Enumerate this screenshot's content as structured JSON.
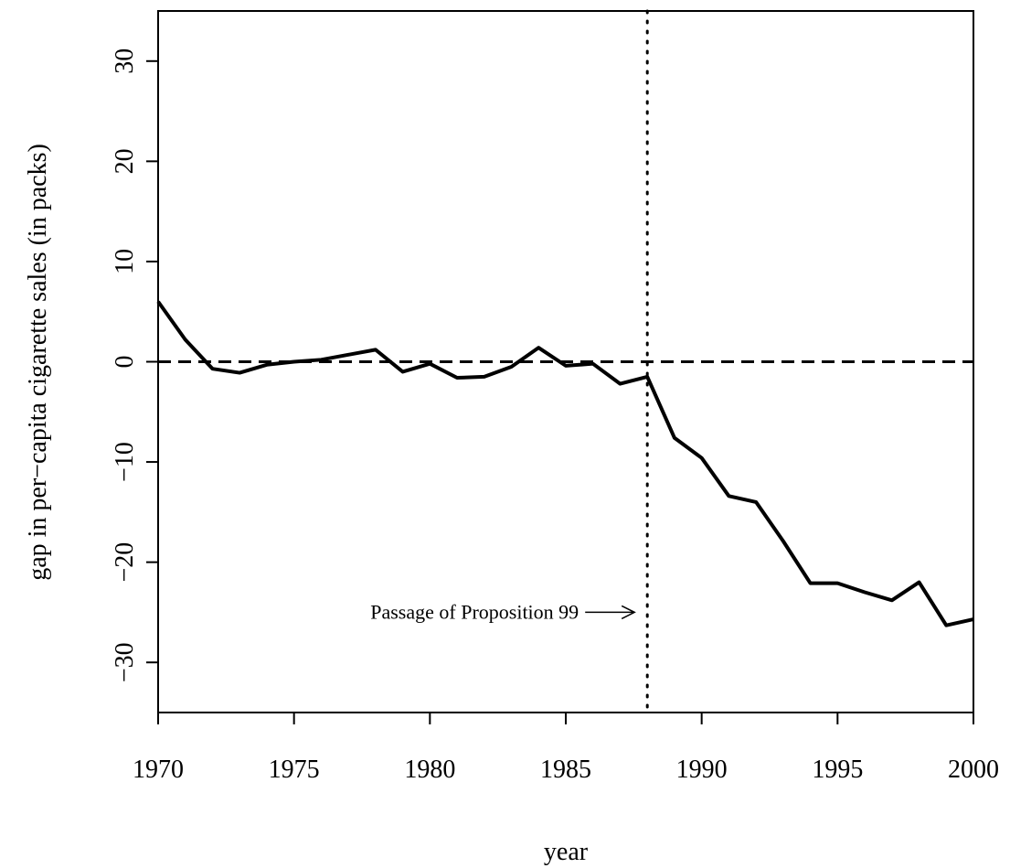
{
  "chart_data": {
    "type": "line",
    "x": [
      1970,
      1971,
      1972,
      1973,
      1974,
      1975,
      1976,
      1977,
      1978,
      1979,
      1980,
      1981,
      1982,
      1983,
      1984,
      1985,
      1986,
      1987,
      1988,
      1989,
      1990,
      1991,
      1992,
      1993,
      1994,
      1995,
      1996,
      1997,
      1998,
      1999,
      2000
    ],
    "series": [
      {
        "color": "#000000",
        "values": [
          6.0,
          2.2,
          -0.7,
          -1.1,
          -0.3,
          0.0,
          0.2,
          0.7,
          1.2,
          -1.0,
          -0.2,
          -1.6,
          -1.5,
          -0.5,
          1.4,
          -0.4,
          -0.2,
          -2.2,
          -1.5,
          -7.6,
          -9.6,
          -13.4,
          -14.0,
          -17.9,
          -22.1,
          -22.1,
          -23.0,
          -23.8,
          -22.0,
          -26.3,
          -25.7
        ]
      }
    ],
    "xlim": [
      1970,
      2000
    ],
    "xticks": [
      1970,
      1975,
      1980,
      1985,
      1990,
      1995,
      2000
    ],
    "ylim": [
      -35,
      35
    ],
    "yticks": [
      {
        "value": -30,
        "label": "−30"
      },
      {
        "value": -20,
        "label": "−20"
      },
      {
        "value": -10,
        "label": "−10"
      },
      0,
      10,
      20,
      30
    ],
    "xlabel": "year",
    "ylabel": "gap in per−capita cigarette sales (in packs)",
    "hline": 0,
    "vline": 1988,
    "annotation": "Passage of Proposition 99"
  }
}
